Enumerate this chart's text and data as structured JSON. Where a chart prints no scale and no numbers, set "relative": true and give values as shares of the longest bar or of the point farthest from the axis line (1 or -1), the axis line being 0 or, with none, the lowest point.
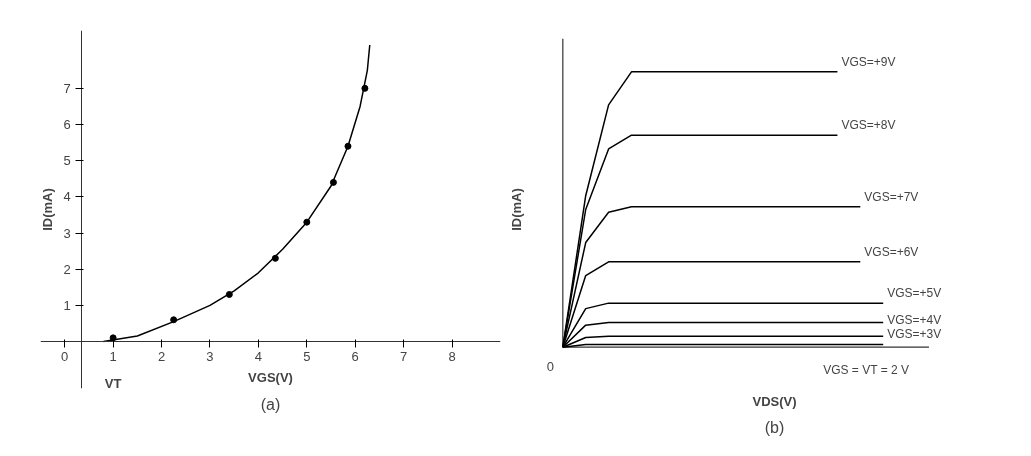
{
  "chart_data": [
    {
      "type": "scatter",
      "title": "(a)",
      "xlabel": "VGS(V)",
      "ylabel": "ID(mA)",
      "xlim": [
        -0.5,
        9
      ],
      "ylim": [
        -1.3,
        8.6
      ],
      "xticks": [
        0,
        1,
        2,
        3,
        4,
        5,
        6,
        7,
        8
      ],
      "yticks": [
        1,
        2,
        3,
        4,
        5,
        6,
        7
      ],
      "grid": false,
      "annotations": [
        "VT"
      ],
      "series": [
        {
          "type": "scatter",
          "marker": "circle",
          "color": "#000000",
          "x": [
            1,
            2.25,
            3.4,
            4.35,
            5.0,
            5.55,
            5.85,
            6.2
          ],
          "values": [
            0.1,
            0.6,
            1.3,
            2.3,
            3.3,
            4.4,
            5.4,
            7.0
          ]
        },
        {
          "type": "line",
          "marker": "none",
          "color": "#000000",
          "x": [
            0.8,
            1.5,
            2.25,
            3,
            3.5,
            4,
            4.5,
            5,
            5.5,
            5.85,
            6.1,
            6.25,
            6.3
          ],
          "values": [
            0,
            0.15,
            0.55,
            1.0,
            1.4,
            1.9,
            2.55,
            3.3,
            4.3,
            5.4,
            6.5,
            7.5,
            8.2
          ]
        }
      ]
    },
    {
      "type": "line",
      "title": "(b)",
      "xlabel": "VDS(V)",
      "ylabel": "ID(mA)",
      "relative": true,
      "grid": false,
      "annotations": [
        "0"
      ],
      "categories": [
        null,
        null,
        null,
        null,
        null,
        null,
        null,
        null,
        null,
        null,
        null,
        null,
        null,
        null,
        null
      ],
      "series": [
        {
          "name": "VGS=+9V",
          "color": "#000000",
          "values": [
            0,
            0.55,
            0.88,
            1,
            1,
            1,
            1,
            1,
            1,
            1,
            1,
            1,
            1,
            null,
            null
          ]
        },
        {
          "name": "VGS=+8V",
          "color": "#000000",
          "values": [
            0,
            0.5,
            0.72,
            0.77,
            0.77,
            0.77,
            0.77,
            0.77,
            0.77,
            0.77,
            0.77,
            0.77,
            0.77,
            null,
            null
          ]
        },
        {
          "name": "VGS=+7V",
          "color": "#000000",
          "values": [
            0,
            0.38,
            0.49,
            0.51,
            0.51,
            0.51,
            0.51,
            0.51,
            0.51,
            0.51,
            0.51,
            0.51,
            0.51,
            0.51,
            null
          ]
        },
        {
          "name": "VGS=+6V",
          "color": "#000000",
          "values": [
            0,
            0.26,
            0.31,
            0.31,
            0.31,
            0.31,
            0.31,
            0.31,
            0.31,
            0.31,
            0.31,
            0.31,
            0.31,
            0.31,
            null
          ]
        },
        {
          "name": "VGS=+5V",
          "color": "#000000",
          "values": [
            0,
            0.14,
            0.16,
            0.16,
            0.16,
            0.16,
            0.16,
            0.16,
            0.16,
            0.16,
            0.16,
            0.16,
            0.16,
            0.16,
            0.16
          ]
        },
        {
          "name": "VGS=+4V",
          "color": "#000000",
          "values": [
            0,
            0.08,
            0.09,
            0.09,
            0.09,
            0.09,
            0.09,
            0.09,
            0.09,
            0.09,
            0.09,
            0.09,
            0.09,
            0.09,
            0.09
          ]
        },
        {
          "name": "VGS=+3V",
          "color": "#000000",
          "values": [
            0,
            0.035,
            0.04,
            0.04,
            0.04,
            0.04,
            0.04,
            0.04,
            0.04,
            0.04,
            0.04,
            0.04,
            0.04,
            0.04,
            0.04
          ]
        },
        {
          "name": "VGS = VT = 2 V",
          "color": "#000000",
          "values": [
            0,
            0.01,
            0.01,
            0.01,
            0.01,
            0.01,
            0.01,
            0.01,
            0.01,
            0.01,
            0.01,
            0.01,
            0.01,
            0.01,
            0.01
          ]
        }
      ]
    }
  ]
}
